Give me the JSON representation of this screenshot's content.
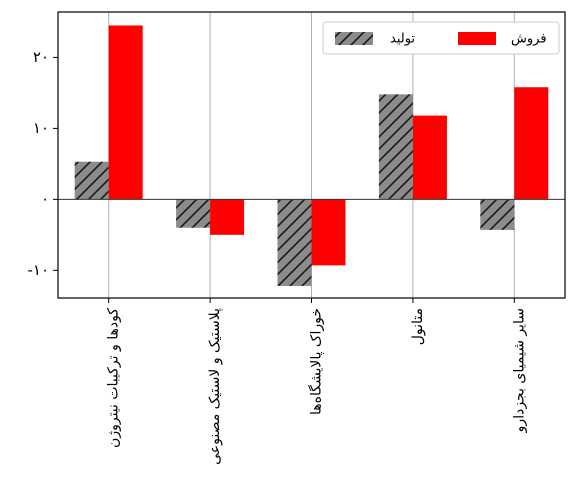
{
  "chart_data": {
    "type": "bar",
    "categories": [
      "کودها و ترکیبات نیتروژن",
      "پلاستیک و لاستیک مصنوعی",
      "خوراک پالایشگاه‌ها",
      "متانول",
      "سایر شیمیای بجزدارو"
    ],
    "series": [
      {
        "name": "تولید",
        "values": [
          5.3,
          -4.0,
          -12.2,
          14.8,
          -4.3
        ],
        "color": "#8c8c8c",
        "hatch": true
      },
      {
        "name": "فروش",
        "values": [
          24.5,
          -5.0,
          -9.3,
          11.8,
          15.8
        ],
        "color": "#ff0000",
        "hatch": false
      }
    ],
    "yticks": [
      {
        "value": -10,
        "label": "-۱۰"
      },
      {
        "value": 0,
        "label": "۰"
      },
      {
        "value": 10,
        "label": "۱۰"
      },
      {
        "value": 20,
        "label": "۲۰"
      }
    ],
    "ylim": [
      -13.9,
      26.4
    ],
    "grid": "vertical",
    "legend_position": "top-right"
  }
}
